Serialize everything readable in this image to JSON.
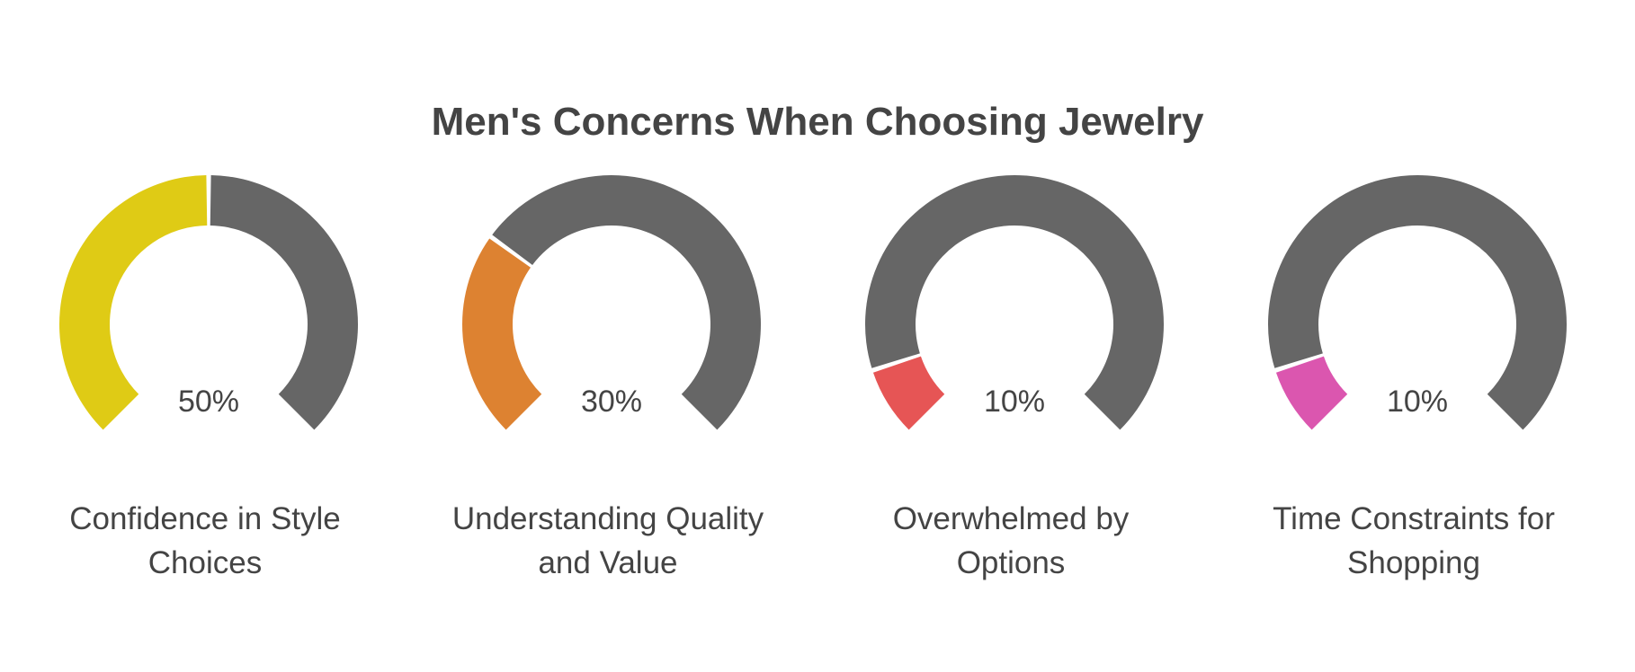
{
  "chart_data": {
    "type": "gauge",
    "title": "Men's Concerns When Choosing Jewelry",
    "unit": "%",
    "max": 100,
    "categories": [
      [
        "Confidence in Style",
        "Choices"
      ],
      [
        "Understanding Quality",
        "and Value"
      ],
      [
        "Overwhelmed by",
        "Options"
      ],
      [
        "Time Constraints for",
        "Shopping"
      ]
    ],
    "values": [
      50,
      30,
      10,
      10
    ],
    "value_labels": [
      "50%",
      "30%",
      "10%",
      "10%"
    ],
    "colors": [
      "#DFCB15",
      "#DD8231",
      "#E65555",
      "#DB56AF"
    ],
    "track_color": "#666666",
    "text_color": "#444444"
  }
}
